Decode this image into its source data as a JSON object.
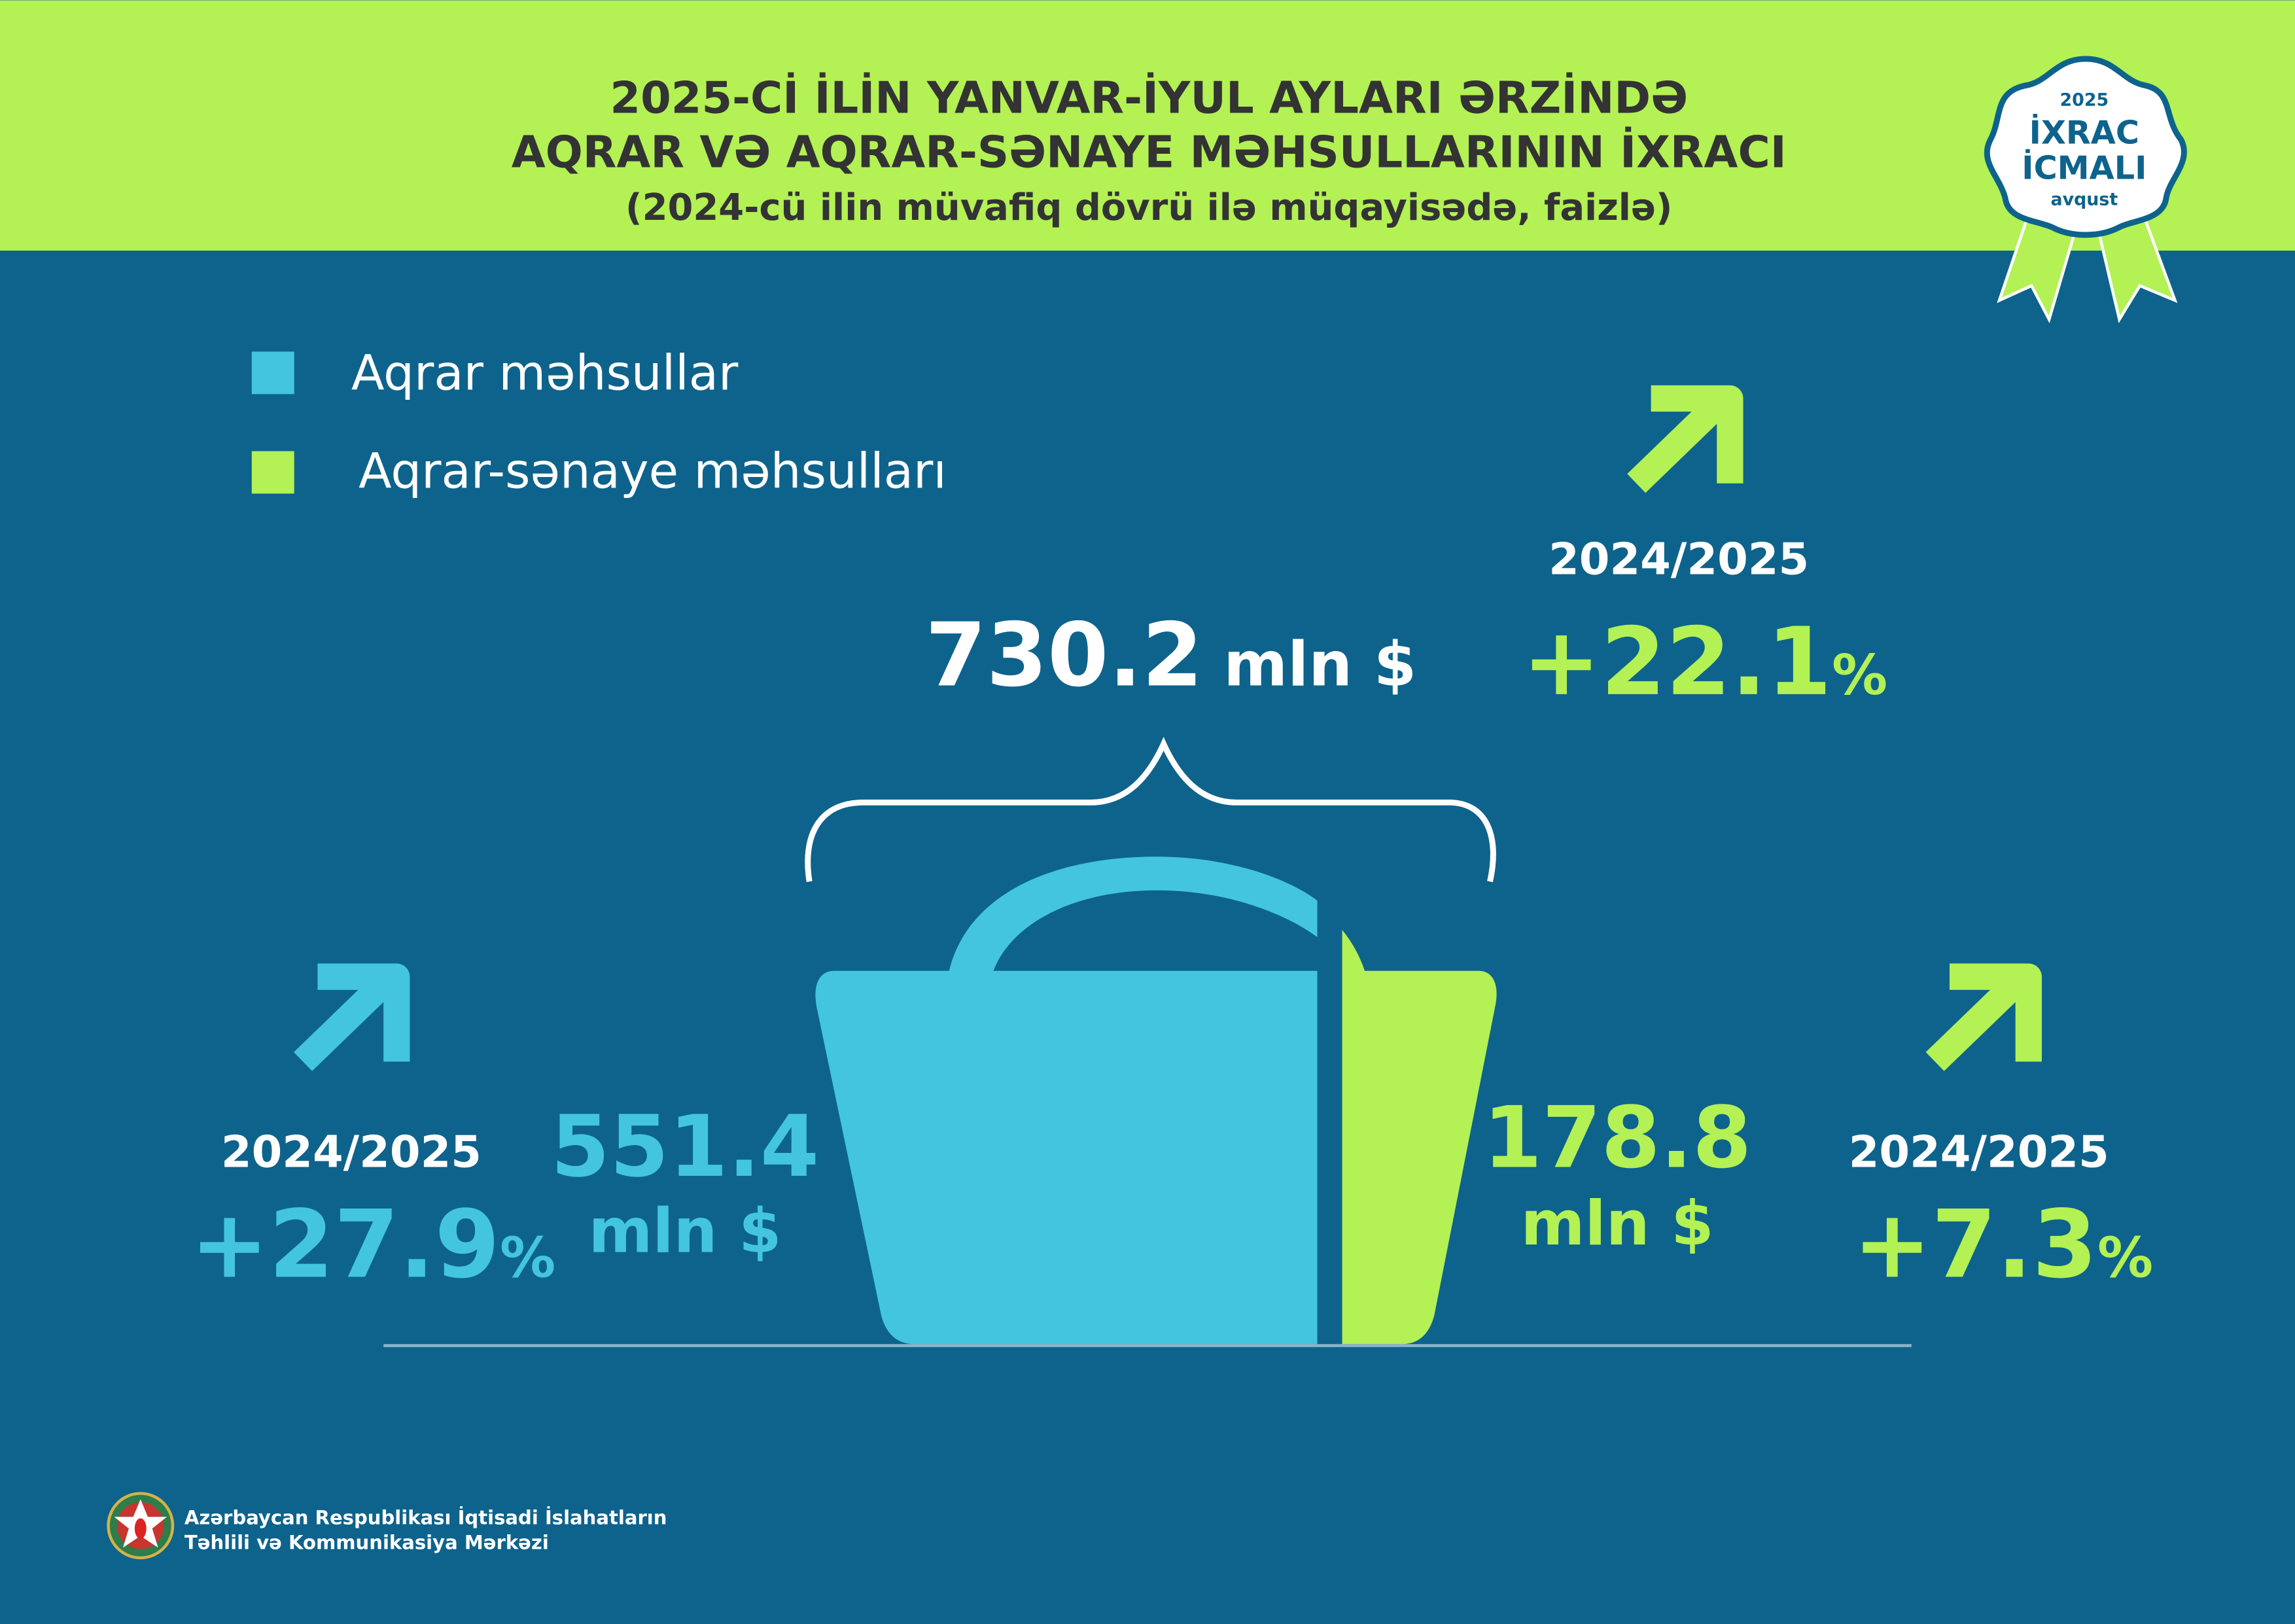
{
  "header": {
    "title_line1": "2025-Cİ İLİN YANVAR-İYUL AYLARI ƏRZİNDƏ",
    "title_line2": "AQRAR VƏ AQRAR-SƏNAYE MƏHSULLARININ İXRACI",
    "subtitle": "(2024-cü ilin müvafiq dövrü ilə müqayisədə, faizlə)"
  },
  "badge": {
    "year": "2025",
    "line1": "İXRAC",
    "line2": "İCMALI",
    "month": "avqust"
  },
  "legend": [
    {
      "label": "Aqrar məhsullar",
      "color": "#43c5e0"
    },
    {
      "label": "Aqrar-sənaye məhsulları",
      "color": "#b3f154"
    }
  ],
  "total": {
    "value": "730.2",
    "unit": "mln $",
    "period": "2024/2025",
    "change": "+22.1",
    "pct": "%"
  },
  "agrarian": {
    "value": "551.4",
    "unit": "mln $",
    "period": "2024/2025",
    "change": "+27.9",
    "pct": "%"
  },
  "agro_industrial": {
    "value": "178.8",
    "unit": "mln $",
    "period": "2024/2025",
    "change": "+7.3",
    "pct": "%"
  },
  "footer": {
    "line1": "Azərbaycan Respublikası İqtisadi İslahatların",
    "line2": "Təhlili və Kommunikasiya Mərkəzi"
  },
  "colors": {
    "background": "#0e638c",
    "header": "#b3f154",
    "cyan": "#43c5e0",
    "green": "#b3f154",
    "dark_text": "#333333"
  },
  "icons": [
    "arrow-up-right-icon",
    "ribbon-badge-icon",
    "state-emblem-icon"
  ]
}
